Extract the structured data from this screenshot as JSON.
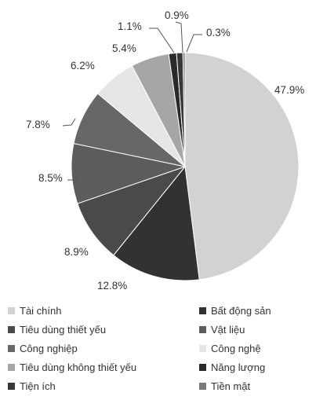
{
  "chart_data": {
    "type": "pie",
    "title": "",
    "slices": [
      {
        "label": "Tài chính",
        "value": 47.9,
        "display": "47.9%",
        "color": "#d2d2d2"
      },
      {
        "label": "Bất động sản",
        "value": 12.8,
        "display": "12.8%",
        "color": "#323232"
      },
      {
        "label": "Tiêu dùng thiết yếu",
        "value": 8.9,
        "display": "8.9%",
        "color": "#4a4a4a"
      },
      {
        "label": "Vật liệu",
        "value": 8.5,
        "display": "8.5%",
        "color": "#5c5c5c"
      },
      {
        "label": "Công nghiệp",
        "value": 7.8,
        "display": "7.8%",
        "color": "#676767"
      },
      {
        "label": "Công nghệ",
        "value": 6.2,
        "display": "6.2%",
        "color": "#e6e6e6"
      },
      {
        "label": "Tiêu dùng không thiết yếu",
        "value": 5.4,
        "display": "5.4%",
        "color": "#a6a6a6"
      },
      {
        "label": "Năng lượng",
        "value": 1.1,
        "display": "1.1%",
        "color": "#2a2a2a"
      },
      {
        "label": "Tiện ích",
        "value": 0.9,
        "display": "0.9%",
        "color": "#383838"
      },
      {
        "label": "Tiền mặt",
        "value": 0.3,
        "display": "0.3%",
        "color": "#7a7a7a"
      }
    ],
    "legend_placement": "bottom"
  }
}
